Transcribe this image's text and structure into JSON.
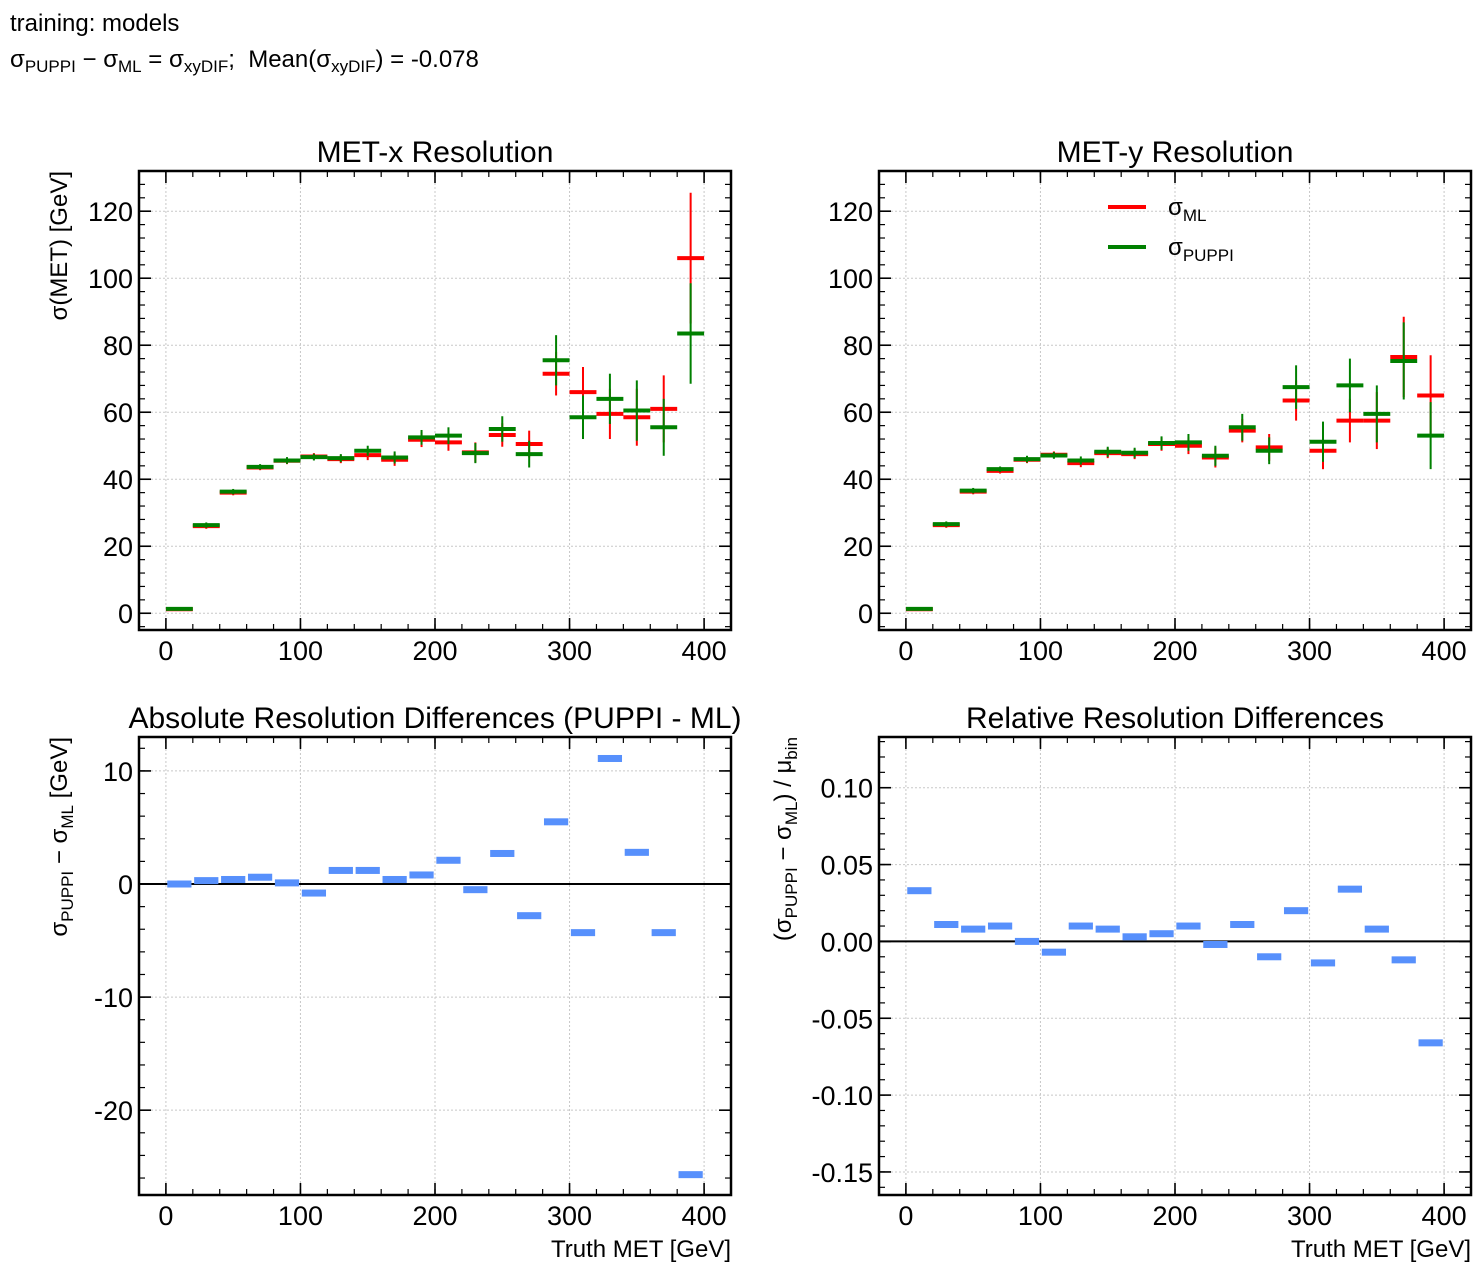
{
  "header": {
    "line1": "training: models",
    "formula": {
      "sigma": "σ",
      "puppi_sub": "PUPPI",
      "ml_sub": "ML",
      "diff_sub": "xyDIF",
      "mean_label": "Mean",
      "mean_value": "-0.078"
    }
  },
  "chart_data": [
    {
      "id": "met-x",
      "type": "scatter",
      "title": "MET-x Resolution",
      "ylabel": "σ(MET) [GeV]",
      "xlabel": "",
      "xlim": [
        -20,
        420
      ],
      "ylim": [
        -5,
        132
      ],
      "xticks": [
        0,
        100,
        200,
        300,
        400
      ],
      "yticks": [
        0,
        20,
        40,
        60,
        80,
        100,
        120
      ],
      "grid": true,
      "series": [
        {
          "name": "σML",
          "color": "#ff0000",
          "x": [
            10,
            30,
            50,
            70,
            90,
            110,
            130,
            150,
            170,
            190,
            210,
            230,
            250,
            270,
            290,
            310,
            330,
            350,
            370,
            390
          ],
          "y": [
            1.2,
            26,
            36,
            43.5,
            45.5,
            46.8,
            46,
            47.2,
            45.8,
            51.8,
            51,
            48,
            53.2,
            50.5,
            71.5,
            66,
            59.5,
            58.5,
            61,
            106
          ],
          "yerr": [
            0.2,
            0.8,
            0.8,
            0.8,
            1.0,
            1.0,
            1.2,
            1.5,
            1.8,
            2.2,
            2.5,
            3.0,
            3.5,
            4.0,
            6.5,
            7.5,
            7.5,
            8.5,
            10,
            19.5
          ]
        },
        {
          "name": "σPUPPI",
          "color": "#008000",
          "x": [
            10,
            30,
            50,
            70,
            90,
            110,
            130,
            150,
            170,
            190,
            210,
            230,
            250,
            270,
            290,
            310,
            330,
            350,
            370,
            390
          ],
          "y": [
            1.3,
            26.3,
            36.3,
            43.7,
            45.6,
            46.6,
            46.3,
            48.5,
            46.5,
            52.5,
            53,
            47.8,
            55,
            47.5,
            75.5,
            58.5,
            64,
            60.5,
            55.5,
            83.5
          ],
          "yerr": [
            0.2,
            0.8,
            0.8,
            0.8,
            1.0,
            1.0,
            1.2,
            1.5,
            1.8,
            2.2,
            2.5,
            3.0,
            3.8,
            4.0,
            7.5,
            6.5,
            7.5,
            9.0,
            8.5,
            15
          ]
        }
      ]
    },
    {
      "id": "met-y",
      "type": "scatter",
      "title": "MET-y Resolution",
      "ylabel": "",
      "xlabel": "",
      "xlim": [
        -20,
        420
      ],
      "ylim": [
        -5,
        132
      ],
      "xticks": [
        0,
        100,
        200,
        300,
        400
      ],
      "yticks": [
        0,
        20,
        40,
        60,
        80,
        100,
        120
      ],
      "grid": true,
      "legend": "top-center",
      "series": [
        {
          "name": "σML",
          "color": "#ff0000",
          "x": [
            10,
            30,
            50,
            70,
            90,
            110,
            130,
            150,
            170,
            190,
            210,
            230,
            250,
            270,
            290,
            310,
            330,
            350,
            370,
            390
          ],
          "y": [
            1.2,
            26.3,
            36.3,
            42.5,
            45.8,
            47.3,
            44.8,
            47.8,
            47.5,
            50.5,
            50,
            46.5,
            54.5,
            49.5,
            63.5,
            48.5,
            57.5,
            57.5,
            76.5,
            65
          ],
          "yerr": [
            0.2,
            0.8,
            0.8,
            0.8,
            1.0,
            1.0,
            1.2,
            1.5,
            1.5,
            2.0,
            2.5,
            3.0,
            3.5,
            4.0,
            6.0,
            5.5,
            6.5,
            8.5,
            12,
            12
          ]
        },
        {
          "name": "σPUPPI",
          "color": "#008000",
          "x": [
            10,
            30,
            50,
            70,
            90,
            110,
            130,
            150,
            170,
            190,
            210,
            230,
            250,
            270,
            290,
            310,
            330,
            350,
            370,
            390
          ],
          "y": [
            1.3,
            26.6,
            36.6,
            43,
            46,
            47.1,
            45.6,
            48.2,
            47.9,
            50.8,
            51,
            47,
            55.5,
            48.5,
            67.5,
            51.2,
            68,
            59.5,
            75.3,
            53
          ],
          "yerr": [
            0.2,
            0.8,
            0.8,
            0.8,
            1.0,
            1.0,
            1.2,
            1.5,
            1.5,
            2.0,
            2.5,
            3.0,
            4.0,
            4.0,
            6.5,
            6.0,
            8.0,
            8.5,
            11.5,
            10
          ]
        }
      ]
    },
    {
      "id": "abs-diff",
      "type": "scatter",
      "title": "Absolute Resolution Differences (PUPPI - ML)",
      "ylabel": "σPUPPI − σML [GeV]",
      "xlabel": "Truth MET [GeV]",
      "xlim": [
        -20,
        420
      ],
      "ylim": [
        -27.5,
        13
      ],
      "xticks": [
        0,
        100,
        200,
        300,
        400
      ],
      "yticks": [
        -20,
        -10,
        0,
        10
      ],
      "grid": true,
      "zero_line": true,
      "series": [
        {
          "color": "#5790fc",
          "x": [
            10,
            30,
            50,
            70,
            90,
            110,
            130,
            150,
            170,
            190,
            210,
            230,
            250,
            270,
            290,
            310,
            330,
            350,
            370,
            390
          ],
          "y": [
            0,
            0.3,
            0.4,
            0.6,
            0.1,
            -0.8,
            1.2,
            1.2,
            0.4,
            0.8,
            2.1,
            -0.5,
            2.7,
            -2.8,
            5.5,
            -4.3,
            11.1,
            2.8,
            -4.3,
            -25.7
          ]
        }
      ]
    },
    {
      "id": "rel-diff",
      "type": "scatter",
      "title": "Relative Resolution Differences",
      "ylabel": "(σPUPPI − σML) / μbin",
      "xlabel": "Truth MET [GeV]",
      "xlim": [
        -20,
        420
      ],
      "ylim": [
        -0.165,
        0.133
      ],
      "xticks": [
        0,
        100,
        200,
        300,
        400
      ],
      "yticks": [
        -0.15,
        -0.1,
        -0.05,
        0.0,
        0.05,
        0.1
      ],
      "grid": true,
      "zero_line": true,
      "series": [
        {
          "color": "#5790fc",
          "x": [
            10,
            30,
            50,
            70,
            90,
            110,
            130,
            150,
            170,
            190,
            210,
            230,
            250,
            270,
            290,
            310,
            330,
            350,
            370,
            390
          ],
          "y": [
            0.033,
            0.011,
            0.008,
            0.01,
            0.0,
            -0.007,
            0.01,
            0.008,
            0.003,
            0.005,
            0.01,
            -0.002,
            0.011,
            -0.01,
            0.02,
            -0.014,
            0.034,
            0.008,
            -0.012,
            -0.066
          ]
        }
      ]
    }
  ]
}
